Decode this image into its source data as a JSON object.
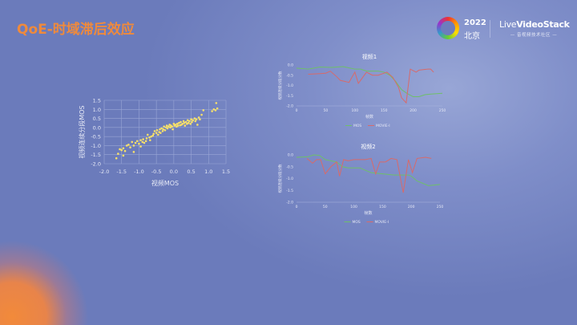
{
  "slide": {
    "title": "QoE-时域滞后效应",
    "logo": {
      "year": "2022",
      "city": "北京",
      "brand_light": "Live",
      "brand": "VideoStack",
      "tagline": "音视频技术社区"
    }
  },
  "colors": {
    "title": "#ef8a3c",
    "scatter": "#f7e06a",
    "mos": "#6fbf6a",
    "movie": "#d86a6a",
    "axis_text": "#e6e9f6"
  },
  "chart_data": [
    {
      "type": "scatter",
      "xlabel": "视频MOS",
      "ylabel": "视频连续分段MOS",
      "xlim": [
        -2.0,
        1.5
      ],
      "ylim": [
        -2.0,
        1.5
      ],
      "grid": true,
      "xticks": [
        "-2.0",
        "-1.5",
        "-1.0",
        "-0.5",
        "0.0",
        "0.5",
        "1.0",
        "1.5"
      ],
      "yticks": [
        "1.5",
        "1.0",
        "0.5",
        "0.0",
        "-0.5",
        "-1.0",
        "-1.5",
        "-2.0"
      ],
      "points": [
        [
          -1.65,
          -1.7
        ],
        [
          -1.6,
          -1.45
        ],
        [
          -1.55,
          -1.2
        ],
        [
          -1.5,
          -1.25
        ],
        [
          -1.45,
          -1.15
        ],
        [
          -1.45,
          -1.55
        ],
        [
          -1.4,
          -1.3
        ],
        [
          -1.35,
          -1.0
        ],
        [
          -1.3,
          -0.95
        ],
        [
          -1.25,
          -1.1
        ],
        [
          -1.2,
          -0.8
        ],
        [
          -1.15,
          -1.35
        ],
        [
          -1.15,
          -1.0
        ],
        [
          -1.1,
          -0.85
        ],
        [
          -1.05,
          -0.75
        ],
        [
          -1.0,
          -0.9
        ],
        [
          -0.95,
          -1.05
        ],
        [
          -0.95,
          -0.7
        ],
        [
          -0.9,
          -0.8
        ],
        [
          -0.88,
          -0.65
        ],
        [
          -0.85,
          -0.85
        ],
        [
          -0.8,
          -0.75
        ],
        [
          -0.78,
          -0.6
        ],
        [
          -0.75,
          -0.4
        ],
        [
          -0.7,
          -0.55
        ],
        [
          -0.68,
          -0.7
        ],
        [
          -0.65,
          -0.5
        ],
        [
          -0.6,
          -0.45
        ],
        [
          -0.58,
          -0.35
        ],
        [
          -0.55,
          -0.2
        ],
        [
          -0.5,
          -0.3
        ],
        [
          -0.48,
          -0.15
        ],
        [
          -0.45,
          -0.4
        ],
        [
          -0.42,
          -0.25
        ],
        [
          -0.4,
          -0.1
        ],
        [
          -0.38,
          -0.3
        ],
        [
          -0.35,
          -0.05
        ],
        [
          -0.32,
          -0.2
        ],
        [
          -0.3,
          -0.1
        ],
        [
          -0.28,
          0.05
        ],
        [
          -0.25,
          -0.15
        ],
        [
          -0.22,
          0.0
        ],
        [
          -0.2,
          0.1
        ],
        [
          -0.18,
          -0.05
        ],
        [
          -0.15,
          0.05
        ],
        [
          -0.12,
          0.15
        ],
        [
          -0.1,
          0.0
        ],
        [
          -0.08,
          0.1
        ],
        [
          -0.05,
          0.05
        ],
        [
          -0.03,
          -0.1
        ],
        [
          0.0,
          0.2
        ],
        [
          0.02,
          0.1
        ],
        [
          0.05,
          0.15
        ],
        [
          0.08,
          0.05
        ],
        [
          0.1,
          0.2
        ],
        [
          0.12,
          0.1
        ],
        [
          0.15,
          0.25
        ],
        [
          0.18,
          0.12
        ],
        [
          0.2,
          0.3
        ],
        [
          0.22,
          0.15
        ],
        [
          0.25,
          0.2
        ],
        [
          0.28,
          0.35
        ],
        [
          0.3,
          0.25
        ],
        [
          0.32,
          0.1
        ],
        [
          0.35,
          0.3
        ],
        [
          0.38,
          0.2
        ],
        [
          0.4,
          0.4
        ],
        [
          0.42,
          0.25
        ],
        [
          0.45,
          0.35
        ],
        [
          0.48,
          0.2
        ],
        [
          0.5,
          0.45
        ],
        [
          0.52,
          0.3
        ],
        [
          0.55,
          0.4
        ],
        [
          0.6,
          0.5
        ],
        [
          0.62,
          0.35
        ],
        [
          0.65,
          0.45
        ],
        [
          0.68,
          0.15
        ],
        [
          0.72,
          0.55
        ],
        [
          0.75,
          0.45
        ],
        [
          0.8,
          0.7
        ],
        [
          0.85,
          0.95
        ],
        [
          1.1,
          0.9
        ],
        [
          1.15,
          1.0
        ],
        [
          1.2,
          0.95
        ],
        [
          1.22,
          1.35
        ],
        [
          1.25,
          1.05
        ]
      ]
    },
    {
      "type": "line",
      "title": "视频1",
      "xlabel": "帧数",
      "ylabel": "视频连续分段分数",
      "xlim": [
        0,
        250
      ],
      "ylim": [
        -2.0,
        0.0
      ],
      "xticks": [
        "0",
        "50",
        "100",
        "150",
        "200",
        "250"
      ],
      "yticks": [
        "0.0",
        "-0.5",
        "-1.0",
        "-1.5",
        "-2.0"
      ],
      "legend": "bottom",
      "series": [
        {
          "name": "MOS",
          "color": "#6fbf6a",
          "points": [
            [
              0,
              -0.15
            ],
            [
              20,
              -0.2
            ],
            [
              40,
              -0.1
            ],
            [
              60,
              -0.12
            ],
            [
              80,
              -0.08
            ],
            [
              100,
              -0.2
            ],
            [
              110,
              -0.2
            ],
            [
              120,
              -0.3
            ],
            [
              140,
              -0.3
            ],
            [
              150,
              -0.35
            ],
            [
              160,
              -0.5
            ],
            [
              170,
              -0.8
            ],
            [
              180,
              -1.2
            ],
            [
              190,
              -1.4
            ],
            [
              200,
              -1.55
            ],
            [
              210,
              -1.55
            ],
            [
              220,
              -1.45
            ],
            [
              230,
              -1.42
            ],
            [
              250,
              -1.38
            ]
          ]
        },
        {
          "name": "MOVIE-I",
          "color": "#d86a6a",
          "points": [
            [
              20,
              -0.45
            ],
            [
              40,
              -0.42
            ],
            [
              50,
              -0.4
            ],
            [
              58,
              -0.3
            ],
            [
              70,
              -0.6
            ],
            [
              75,
              -0.75
            ],
            [
              90,
              -0.85
            ],
            [
              100,
              -0.35
            ],
            [
              106,
              -0.9
            ],
            [
              120,
              -0.35
            ],
            [
              130,
              -0.5
            ],
            [
              140,
              -0.5
            ],
            [
              155,
              -0.35
            ],
            [
              165,
              -0.6
            ],
            [
              175,
              -1.1
            ],
            [
              180,
              -1.6
            ],
            [
              188,
              -1.85
            ],
            [
              195,
              -0.2
            ],
            [
              205,
              -0.35
            ],
            [
              210,
              -0.25
            ],
            [
              225,
              -0.2
            ],
            [
              230,
              -0.2
            ],
            [
              235,
              -0.35
            ]
          ]
        }
      ]
    },
    {
      "type": "line",
      "title": "视频2",
      "xlabel": "帧数",
      "ylabel": "视频连续分段分数",
      "xlim": [
        0,
        250
      ],
      "ylim": [
        -2.0,
        0.0
      ],
      "xticks": [
        "0",
        "50",
        "100",
        "150",
        "200",
        "250"
      ],
      "yticks": [
        "0.0",
        "-0.5",
        "-1.0",
        "-1.5",
        "-2.0"
      ],
      "legend": "bottom",
      "series": [
        {
          "name": "MOS",
          "color": "#6fbf6a",
          "points": [
            [
              0,
              -0.1
            ],
            [
              20,
              -0.08
            ],
            [
              30,
              0.0
            ],
            [
              40,
              -0.02
            ],
            [
              50,
              -0.2
            ],
            [
              60,
              -0.25
            ],
            [
              70,
              -0.3
            ],
            [
              80,
              -0.5
            ],
            [
              90,
              -0.55
            ],
            [
              110,
              -0.55
            ],
            [
              120,
              -0.65
            ],
            [
              130,
              -0.75
            ],
            [
              150,
              -0.8
            ],
            [
              170,
              -0.85
            ],
            [
              195,
              -0.85
            ],
            [
              200,
              -0.9
            ],
            [
              210,
              -1.1
            ],
            [
              230,
              -1.3
            ],
            [
              250,
              -1.25
            ]
          ]
        },
        {
          "name": "MOVIE-I",
          "color": "#d86a6a",
          "points": [
            [
              18,
              -0.15
            ],
            [
              28,
              -0.35
            ],
            [
              35,
              -0.2
            ],
            [
              42,
              -0.2
            ],
            [
              50,
              -0.8
            ],
            [
              60,
              -0.5
            ],
            [
              70,
              -0.3
            ],
            [
              75,
              -0.9
            ],
            [
              82,
              -0.2
            ],
            [
              90,
              -0.25
            ],
            [
              100,
              -0.2
            ],
            [
              120,
              -0.2
            ],
            [
              130,
              -0.15
            ],
            [
              138,
              -0.8
            ],
            [
              145,
              -0.3
            ],
            [
              155,
              -0.3
            ],
            [
              165,
              -0.15
            ],
            [
              175,
              -0.2
            ],
            [
              186,
              -1.6
            ],
            [
              195,
              -0.2
            ],
            [
              202,
              -0.75
            ],
            [
              210,
              -0.15
            ],
            [
              225,
              -0.1
            ],
            [
              235,
              -0.15
            ]
          ]
        }
      ]
    }
  ]
}
